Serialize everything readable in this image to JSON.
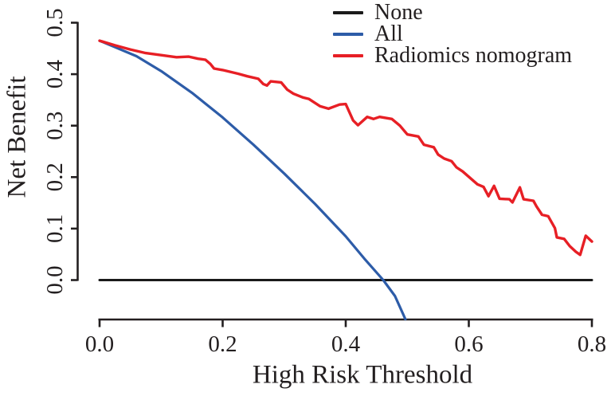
{
  "colors": {
    "axis": "#231f20",
    "text": "#231f20",
    "background": "#ffffff"
  },
  "chart_data": {
    "type": "line",
    "title": "",
    "xlabel": "High Risk Threshold",
    "ylabel": "Net Benefit",
    "xlim": [
      0.0,
      0.8
    ],
    "ylim": [
      -0.076,
      0.5
    ],
    "grid": false,
    "legend_position": "top-right-inside",
    "x_ticks": {
      "values": [
        0.0,
        0.2,
        0.4,
        0.6,
        0.8
      ],
      "labels": [
        "0.0",
        "0.2",
        "0.4",
        "0.6",
        "0.8"
      ]
    },
    "y_ticks": {
      "values": [
        0.0,
        0.1,
        0.2,
        0.3,
        0.4,
        0.5
      ],
      "labels": [
        "0.0",
        "0.1",
        "0.2",
        "0.3",
        "0.4",
        "0.5"
      ]
    },
    "series": [
      {
        "name": "None",
        "color": "#1a1a1a",
        "width": 3,
        "points": [
          [
            0.0,
            0.0
          ],
          [
            0.8,
            0.0
          ]
        ]
      },
      {
        "name": "All",
        "color": "#2d5ca8",
        "width": 3.2,
        "points": [
          [
            0.0,
            0.465
          ],
          [
            0.03,
            0.45
          ],
          [
            0.06,
            0.435
          ],
          [
            0.1,
            0.406
          ],
          [
            0.15,
            0.364
          ],
          [
            0.2,
            0.316
          ],
          [
            0.25,
            0.263
          ],
          [
            0.3,
            0.207
          ],
          [
            0.35,
            0.148
          ],
          [
            0.4,
            0.085
          ],
          [
            0.43,
            0.042
          ],
          [
            0.461,
            0.0
          ],
          [
            0.48,
            -0.031
          ],
          [
            0.497,
            -0.076
          ]
        ]
      },
      {
        "name": "Radiomics nomogram",
        "color": "#e71f25",
        "width": 3.4,
        "points": [
          [
            0.0,
            0.465
          ],
          [
            0.025,
            0.456
          ],
          [
            0.05,
            0.448
          ],
          [
            0.075,
            0.441
          ],
          [
            0.1,
            0.437
          ],
          [
            0.125,
            0.433
          ],
          [
            0.145,
            0.434
          ],
          [
            0.16,
            0.43
          ],
          [
            0.172,
            0.428
          ],
          [
            0.18,
            0.42
          ],
          [
            0.186,
            0.411
          ],
          [
            0.2,
            0.408
          ],
          [
            0.225,
            0.401
          ],
          [
            0.24,
            0.396
          ],
          [
            0.258,
            0.391
          ],
          [
            0.266,
            0.381
          ],
          [
            0.272,
            0.378
          ],
          [
            0.278,
            0.386
          ],
          [
            0.295,
            0.384
          ],
          [
            0.305,
            0.37
          ],
          [
            0.315,
            0.362
          ],
          [
            0.33,
            0.355
          ],
          [
            0.34,
            0.352
          ],
          [
            0.358,
            0.338
          ],
          [
            0.372,
            0.333
          ],
          [
            0.39,
            0.341
          ],
          [
            0.4,
            0.342
          ],
          [
            0.412,
            0.31
          ],
          [
            0.42,
            0.301
          ],
          [
            0.435,
            0.317
          ],
          [
            0.445,
            0.313
          ],
          [
            0.455,
            0.317
          ],
          [
            0.475,
            0.313
          ],
          [
            0.488,
            0.3
          ],
          [
            0.5,
            0.283
          ],
          [
            0.518,
            0.279
          ],
          [
            0.527,
            0.263
          ],
          [
            0.543,
            0.258
          ],
          [
            0.55,
            0.244
          ],
          [
            0.56,
            0.236
          ],
          [
            0.572,
            0.231
          ],
          [
            0.58,
            0.219
          ],
          [
            0.59,
            0.211
          ],
          [
            0.614,
            0.186
          ],
          [
            0.624,
            0.181
          ],
          [
            0.632,
            0.163
          ],
          [
            0.641,
            0.183
          ],
          [
            0.65,
            0.158
          ],
          [
            0.666,
            0.157
          ],
          [
            0.671,
            0.151
          ],
          [
            0.683,
            0.18
          ],
          [
            0.689,
            0.157
          ],
          [
            0.705,
            0.154
          ],
          [
            0.71,
            0.143
          ],
          [
            0.719,
            0.127
          ],
          [
            0.729,
            0.124
          ],
          [
            0.74,
            0.101
          ],
          [
            0.743,
            0.083
          ],
          [
            0.755,
            0.08
          ],
          [
            0.764,
            0.066
          ],
          [
            0.774,
            0.055
          ],
          [
            0.781,
            0.049
          ],
          [
            0.79,
            0.086
          ],
          [
            0.8,
            0.075
          ]
        ]
      }
    ]
  }
}
